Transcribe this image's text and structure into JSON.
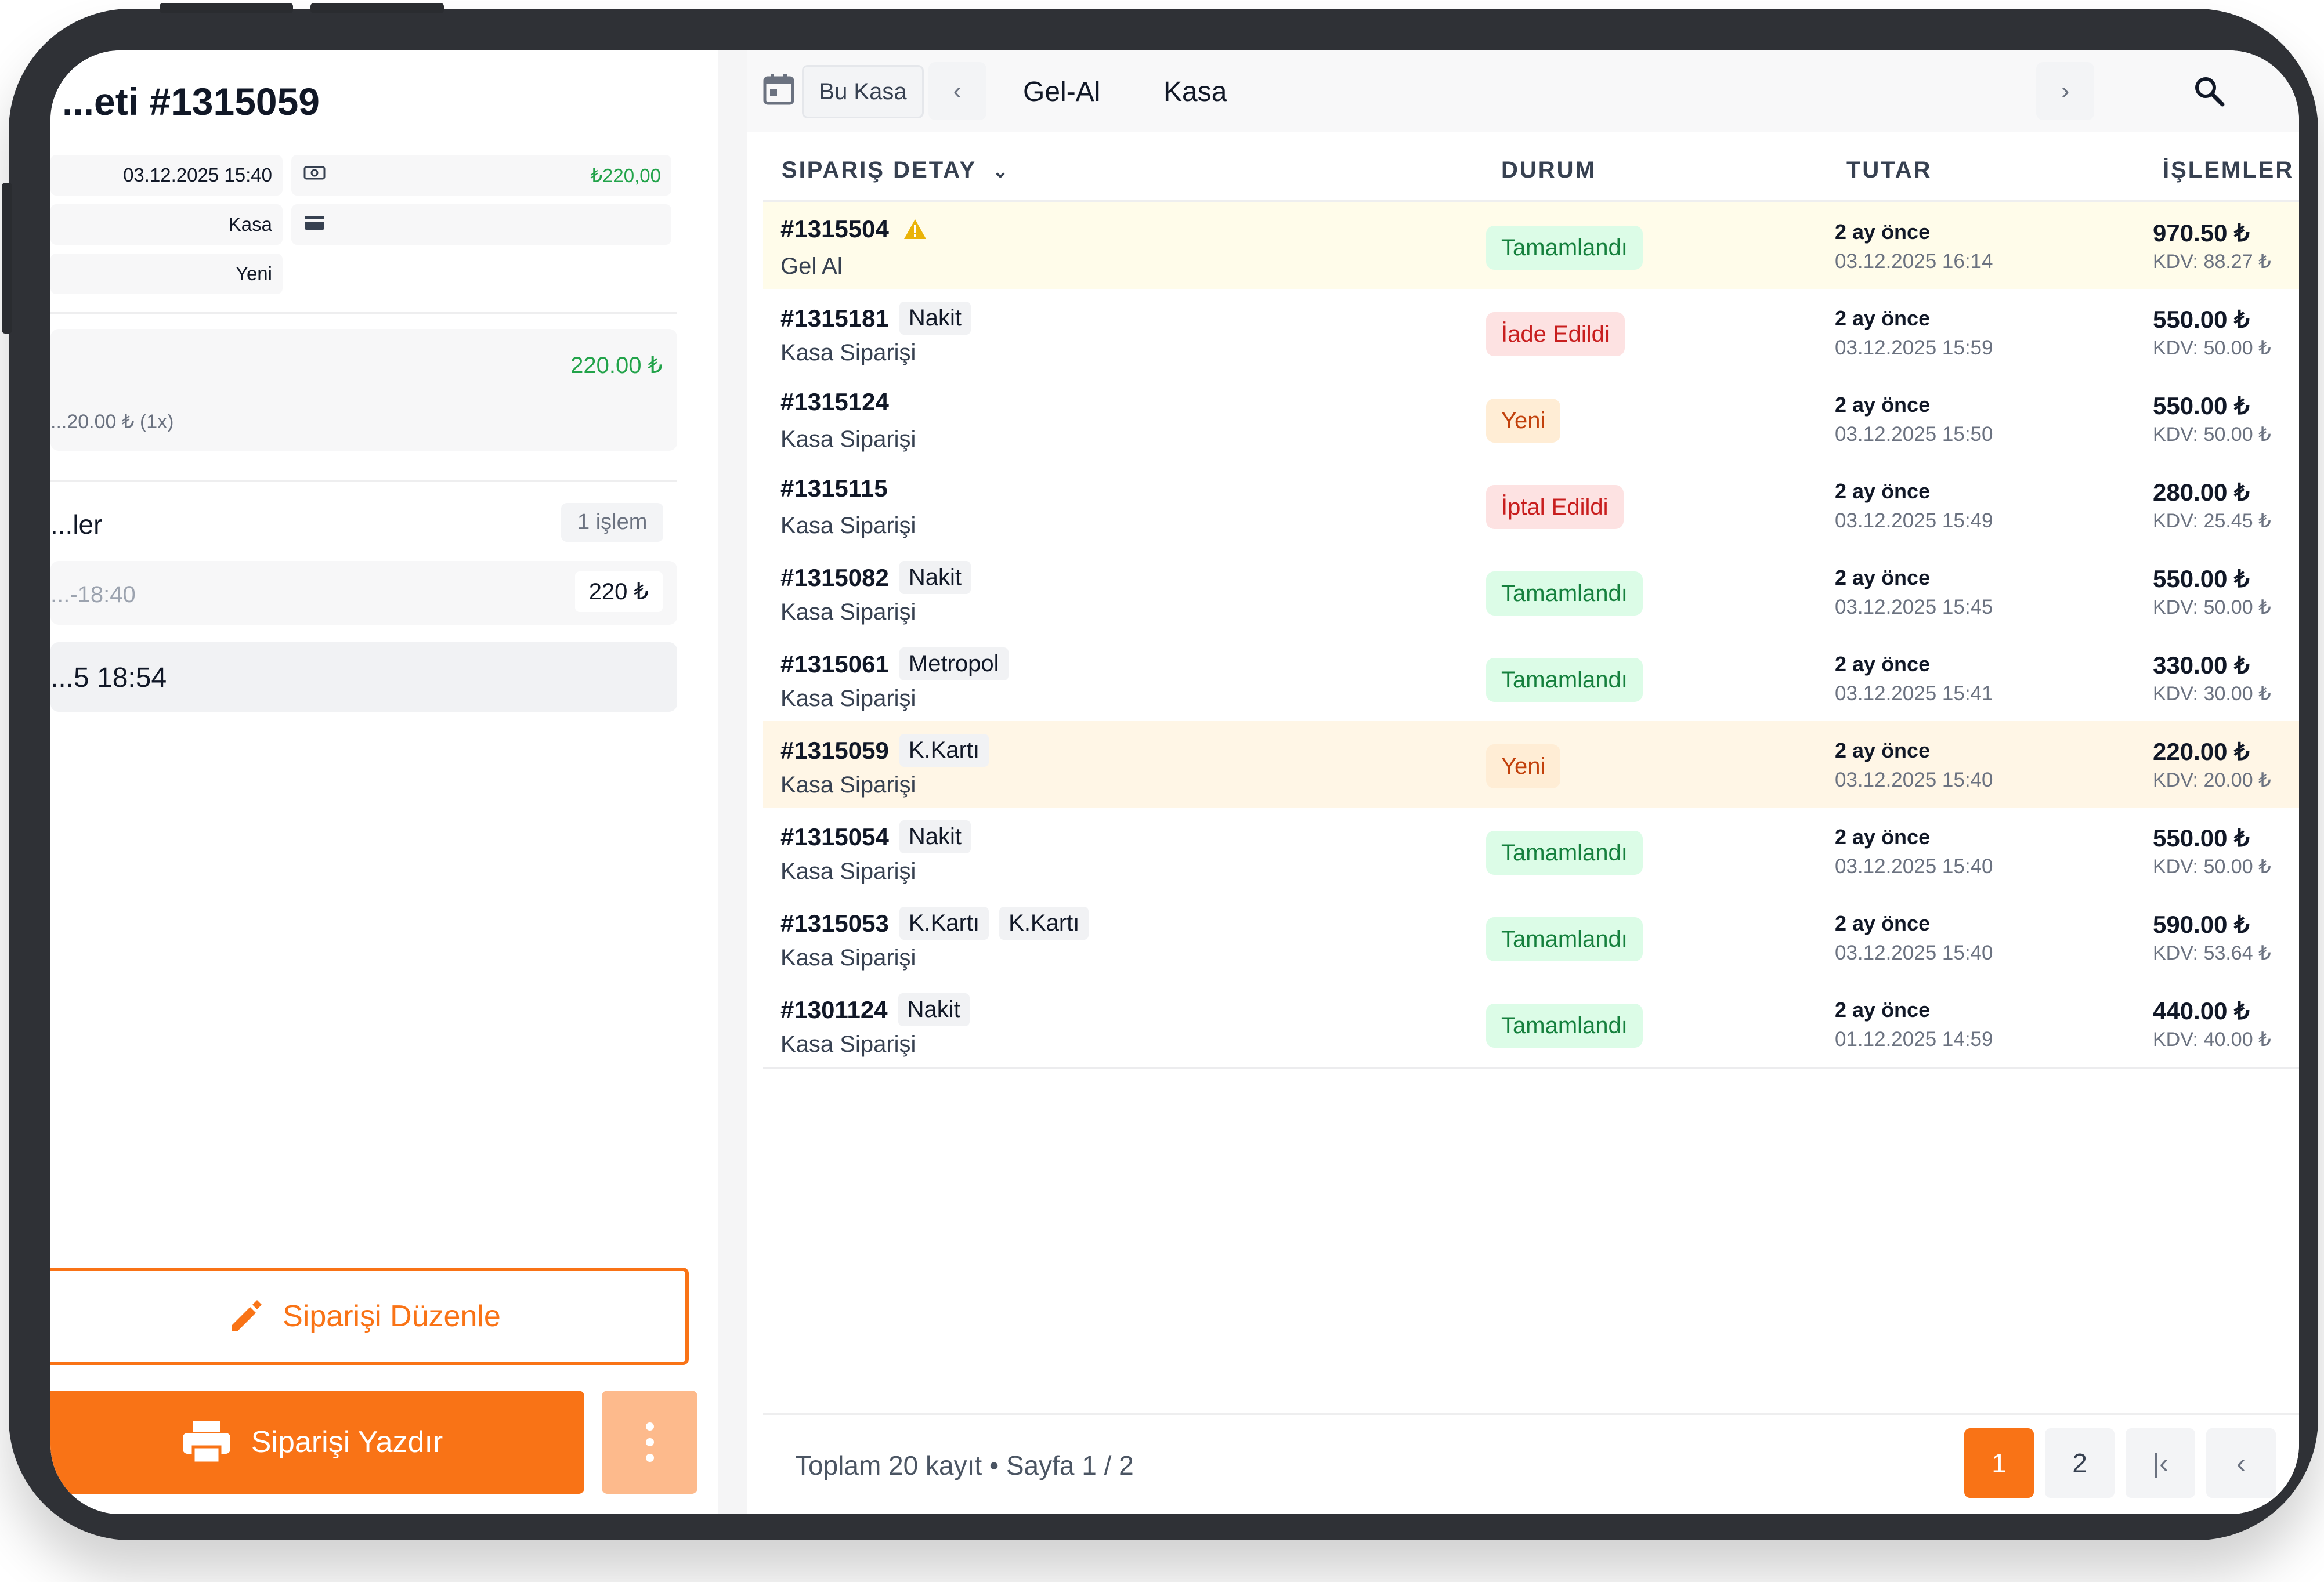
{
  "left": {
    "order_title": "...eti #1315059",
    "info": {
      "datetime": "03.12.2025 15:40",
      "amount": "₺220,00",
      "source": "Kasa",
      "status": "Yeni"
    },
    "item": {
      "price": "220.00 ₺",
      "detail": "...20.00 ₺ (1x)"
    },
    "payments": {
      "title": "...ler",
      "count": "1 işlem",
      "time": "...-18:40",
      "amount": "220 ₺"
    },
    "last_update": "...5 18:54",
    "edit_button": "Siparişi Düzenle",
    "print_button": "Siparişi Yazdır"
  },
  "topbar": {
    "range": "Bu Kasa",
    "tabs": [
      "Gel-Al",
      "Kasa"
    ]
  },
  "table": {
    "headers": {
      "detail": "SIPARIŞ DETAY",
      "status": "DURUM",
      "amount": "TUTAR",
      "actions": "İŞLEMLER"
    },
    "rows": [
      {
        "id": "#1315504",
        "tags": [],
        "warn": true,
        "type": "Gel Al",
        "status": "Tamamlandı",
        "status_kind": "green",
        "ago": "2 ay önce",
        "date": "03.12.2025 16:14",
        "total": "970.50 ₺",
        "kdv": "KDV: 88.27 ₺"
      },
      {
        "id": "#1315181",
        "tags": [
          "Nakit"
        ],
        "warn": false,
        "type": "Kasa Siparişi",
        "status": "İade Edildi",
        "status_kind": "red",
        "ago": "2 ay önce",
        "date": "03.12.2025 15:59",
        "total": "550.00 ₺",
        "kdv": "KDV: 50.00 ₺"
      },
      {
        "id": "#1315124",
        "tags": [],
        "warn": false,
        "type": "Kasa Siparişi",
        "status": "Yeni",
        "status_kind": "orange",
        "ago": "2 ay önce",
        "date": "03.12.2025 15:50",
        "total": "550.00 ₺",
        "kdv": "KDV: 50.00 ₺"
      },
      {
        "id": "#1315115",
        "tags": [],
        "warn": false,
        "type": "Kasa Siparişi",
        "status": "İptal Edildi",
        "status_kind": "red",
        "ago": "2 ay önce",
        "date": "03.12.2025 15:49",
        "total": "280.00 ₺",
        "kdv": "KDV: 25.45 ₺"
      },
      {
        "id": "#1315082",
        "tags": [
          "Nakit"
        ],
        "warn": false,
        "type": "Kasa Siparişi",
        "status": "Tamamlandı",
        "status_kind": "green",
        "ago": "2 ay önce",
        "date": "03.12.2025 15:45",
        "total": "550.00 ₺",
        "kdv": "KDV: 50.00 ₺"
      },
      {
        "id": "#1315061",
        "tags": [
          "Metropol"
        ],
        "warn": false,
        "type": "Kasa Siparişi",
        "status": "Tamamlandı",
        "status_kind": "green",
        "ago": "2 ay önce",
        "date": "03.12.2025 15:41",
        "total": "330.00 ₺",
        "kdv": "KDV: 30.00 ₺"
      },
      {
        "id": "#1315059",
        "tags": [
          "K.Kartı"
        ],
        "warn": false,
        "selected": true,
        "type": "Kasa Siparişi",
        "status": "Yeni",
        "status_kind": "orange",
        "ago": "2 ay önce",
        "date": "03.12.2025 15:40",
        "total": "220.00 ₺",
        "kdv": "KDV: 20.00 ₺"
      },
      {
        "id": "#1315054",
        "tags": [
          "Nakit"
        ],
        "warn": false,
        "type": "Kasa Siparişi",
        "status": "Tamamlandı",
        "status_kind": "green",
        "ago": "2 ay önce",
        "date": "03.12.2025 15:40",
        "total": "550.00 ₺",
        "kdv": "KDV: 50.00 ₺"
      },
      {
        "id": "#1315053",
        "tags": [
          "K.Kartı",
          "K.Kartı"
        ],
        "warn": false,
        "type": "Kasa Siparişi",
        "status": "Tamamlandı",
        "status_kind": "green",
        "ago": "2 ay önce",
        "date": "03.12.2025 15:40",
        "total": "590.00 ₺",
        "kdv": "KDV: 53.64 ₺"
      },
      {
        "id": "#1301124",
        "tags": [
          "Nakit"
        ],
        "warn": false,
        "type": "Kasa Siparişi",
        "status": "Tamamlandı",
        "status_kind": "green",
        "ago": "2 ay önce",
        "date": "01.12.2025 14:59",
        "total": "440.00 ₺",
        "kdv": "KDV: 40.00 ₺"
      }
    ]
  },
  "footer": {
    "summary": "Toplam 20 kayıt • Sayfa 1 / 2",
    "pages": [
      "1",
      "2"
    ],
    "current_page": "1"
  },
  "colors": {
    "accent": "#f97316",
    "accent_light": "#fdba8c",
    "green": "#22a34a"
  }
}
